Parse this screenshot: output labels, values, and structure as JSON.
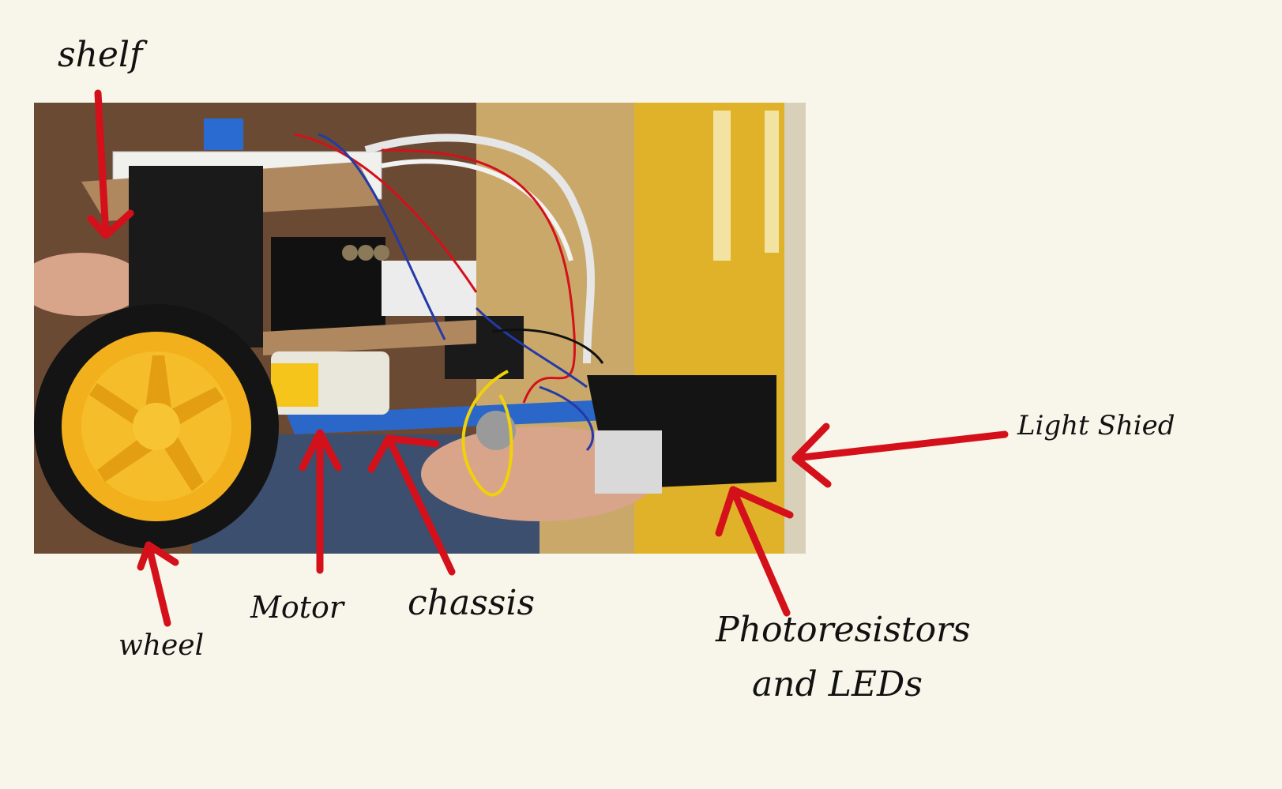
{
  "labels": {
    "shelf": "shelf",
    "wheel": "wheel",
    "motor": "Motor",
    "chassis": "chassis",
    "light_shield": "Light Shied",
    "photoresistors_line1": "Photoresistors",
    "photoresistors_line2": "and LEDs"
  },
  "colors": {
    "background": "#f8f6ea",
    "arrow": "#d4101a",
    "text": "#111111"
  },
  "icons": [
    "arrow-icon"
  ]
}
